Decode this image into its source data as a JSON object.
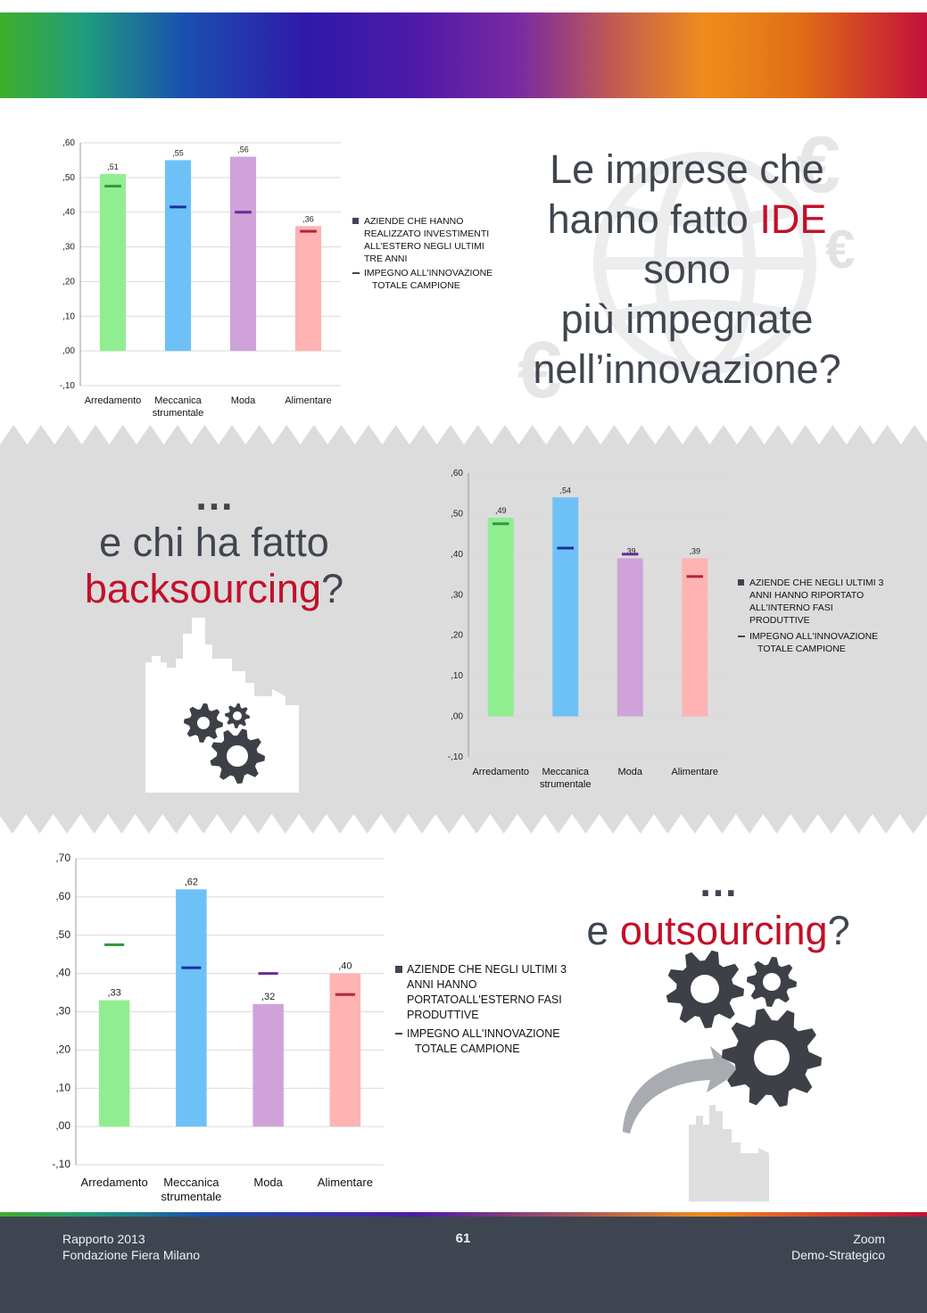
{
  "page": {
    "heading1": {
      "line1": "Le imprese che",
      "line2_pre": "hanno fatto ",
      "line2_red": "IDE",
      "line3": "sono",
      "line4": "più impegnate",
      "line5": "nell’innovazione?"
    },
    "heading2": {
      "dots": "…",
      "line1": "e chi ha fatto",
      "red": "backsourcing",
      "q": "?"
    },
    "heading3": {
      "dots": "…",
      "pre": "e ",
      "red": "outsourcing",
      "q": "?"
    },
    "colors": {
      "text": "#3f4650",
      "accent_red": "#c2102a",
      "footer_bg": "#3e4551",
      "band_bg": "#dcdcdd"
    }
  },
  "footer": {
    "left_line1": "Rapporto 2013",
    "left_line2": "Fondazione Fiera Milano",
    "page_number": "61",
    "right_line1": "Zoom",
    "right_line2": "Demo-Strategico"
  },
  "chart_data": [
    {
      "type": "bar",
      "categories": [
        "Arredamento",
        "Meccanica strumentale",
        "Moda",
        "Alimentare"
      ],
      "category_lines": [
        [
          "Arredamento"
        ],
        [
          "Meccanica",
          "strumentale"
        ],
        [
          "Moda"
        ],
        [
          "Alimentare"
        ]
      ],
      "ylim": [
        -0.1,
        0.6
      ],
      "ticks": [
        0.6,
        0.5,
        0.4,
        0.3,
        0.2,
        0.1,
        0.0,
        -0.1
      ],
      "tick_labels": [
        ",60",
        ",50",
        ",40",
        ",30",
        ",20",
        ",10",
        ",00",
        "-,10"
      ],
      "series": [
        {
          "name": "AZIENDE CHE HANNO REALIZZATO INVESTIMENTI ALL'ESTERO NEGLI ULTIMI TRE ANNI",
          "kind": "bar",
          "values": [
            0.51,
            0.55,
            0.56,
            0.36
          ],
          "labels": [
            ",51",
            ",55",
            ",56",
            ",36"
          ]
        },
        {
          "name": "IMPEGNO ALL'INNOVAZIONE TOTALE CAMPIONE",
          "kind": "marker",
          "values": [
            0.475,
            0.415,
            0.4,
            0.345
          ]
        }
      ],
      "bar_colors": [
        "#90ee90",
        "#6ec1f7",
        "#cfa3d9",
        "#ffb3b3"
      ],
      "marker_colors": [
        "#2e9a3e",
        "#1b2fa0",
        "#6a2a9a",
        "#b0243e"
      ],
      "legend_lines": [
        [
          "AZIENDE CHE HANNO",
          "REALIZZATO INVESTIMENTI",
          "ALL'ESTERO NEGLI ULTIMI",
          "TRE ANNI"
        ],
        [
          "IMPEGNO ALL'INNOVAZIONE",
          "TOTALE CAMPIONE"
        ]
      ],
      "legend_placement": "right",
      "grid": true
    },
    {
      "type": "bar",
      "categories": [
        "Arredamento",
        "Meccanica strumentale",
        "Moda",
        "Alimentare"
      ],
      "category_lines": [
        [
          "Arredamento"
        ],
        [
          "Meccanica",
          "strumentale"
        ],
        [
          "Moda"
        ],
        [
          "Alimentare"
        ]
      ],
      "ylim": [
        -0.1,
        0.6
      ],
      "ticks": [
        0.6,
        0.5,
        0.4,
        0.3,
        0.2,
        0.1,
        0.0,
        -0.1
      ],
      "tick_labels": [
        ",60",
        ",50",
        ",40",
        ",30",
        ",20",
        ",10",
        ",00",
        "-,10"
      ],
      "series": [
        {
          "name": "AZIENDE CHE NEGLI ULTIMI 3 ANNI HANNO RIPORTATO ALL'INTERNO FASI PRODUTTIVE",
          "kind": "bar",
          "values": [
            0.49,
            0.54,
            0.39,
            0.39
          ],
          "labels": [
            ",49",
            ",54",
            ",39",
            ",39"
          ]
        },
        {
          "name": "IMPEGNO ALL'INNOVAZIONE TOTALE CAMPIONE",
          "kind": "marker",
          "values": [
            0.475,
            0.415,
            0.4,
            0.345
          ]
        }
      ],
      "bar_colors": [
        "#90ee90",
        "#6ec1f7",
        "#cfa3d9",
        "#ffb3b3"
      ],
      "marker_colors": [
        "#2e9a3e",
        "#1b2fa0",
        "#6a2a9a",
        "#b0243e"
      ],
      "legend_lines": [
        [
          "AZIENDE CHE NEGLI ULTIMI 3",
          "ANNI HANNO RIPORTATO",
          "ALL'INTERNO FASI",
          "PRODUTTIVE"
        ],
        [
          "IMPEGNO ALL'INNOVAZIONE",
          "TOTALE CAMPIONE"
        ]
      ],
      "legend_placement": "right",
      "grid": true
    },
    {
      "type": "bar",
      "categories": [
        "Arredamento",
        "Meccanica strumentale",
        "Moda",
        "Alimentare"
      ],
      "category_lines": [
        [
          "Arredamento"
        ],
        [
          "Meccanica",
          "strumentale"
        ],
        [
          "Moda"
        ],
        [
          "Alimentare"
        ]
      ],
      "ylim": [
        -0.1,
        0.7
      ],
      "ticks": [
        0.7,
        0.6,
        0.5,
        0.4,
        0.3,
        0.2,
        0.1,
        0.0,
        -0.1
      ],
      "tick_labels": [
        ",70",
        ",60",
        ",50",
        ",40",
        ",30",
        ",20",
        ",10",
        ",00",
        "-,10"
      ],
      "series": [
        {
          "name": "AZIENDE CHE NEGLI ULTIMI 3 ANNI HANNO PORTATO ALL'ESTERNO FASI PRODUTTIVE",
          "kind": "bar",
          "values": [
            0.33,
            0.62,
            0.32,
            0.4
          ],
          "labels": [
            ",33",
            ",62",
            ",32",
            ",40"
          ]
        },
        {
          "name": "IMPEGNO ALL'INNOVAZIONE TOTALE CAMPIONE",
          "kind": "marker",
          "values": [
            0.475,
            0.415,
            0.4,
            0.345
          ]
        }
      ],
      "bar_colors": [
        "#90ee90",
        "#6ec1f7",
        "#cfa3d9",
        "#ffb3b3"
      ],
      "marker_colors": [
        "#2e9a3e",
        "#1b2fa0",
        "#6a2a9a",
        "#b0243e"
      ],
      "legend_lines": [
        [
          "AZIENDE CHE NEGLI ULTIMI 3",
          "ANNI HANNO",
          "PORTATOALL'ESTERNO FASI",
          "PRODUTTIVE"
        ],
        [
          "IMPEGNO ALL'INNOVAZIONE",
          "TOTALE CAMPIONE"
        ]
      ],
      "legend_placement": "right",
      "grid": true
    }
  ]
}
